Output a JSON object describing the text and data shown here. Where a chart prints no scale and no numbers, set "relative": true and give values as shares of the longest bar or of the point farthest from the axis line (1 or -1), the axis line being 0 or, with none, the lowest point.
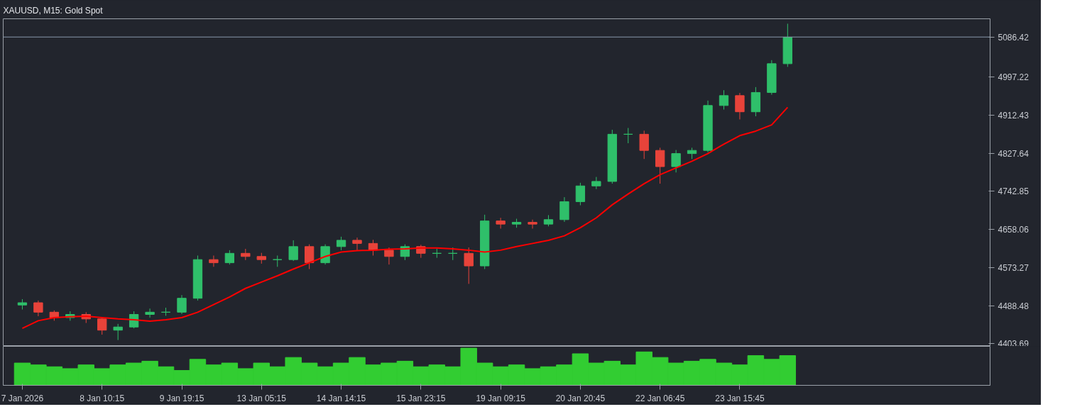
{
  "chart_data": [
    {
      "type": "candlestick",
      "title": "XAUUSD, M15:  Gold Spot",
      "categories": [
        null,
        null,
        null,
        null,
        null,
        null,
        null,
        null,
        null,
        null,
        null,
        null,
        null,
        null,
        null,
        null,
        null,
        null,
        null,
        null,
        null,
        null,
        null,
        null,
        null,
        null,
        null,
        null,
        null,
        null,
        null,
        null,
        null,
        null,
        null,
        null,
        null,
        null,
        null,
        null,
        null,
        null,
        null,
        null,
        null,
        null,
        null,
        null,
        null,
        null,
        null,
        null,
        null,
        null,
        null,
        null,
        null,
        null,
        null,
        null,
        null
      ],
      "ohlc": [
        [
          4490,
          4503,
          4480,
          4495
        ],
        [
          4495,
          4500,
          4465,
          4474
        ],
        [
          4474,
          4478,
          4455,
          4462
        ],
        [
          4462,
          4476,
          4455,
          4469
        ],
        [
          4469,
          4474,
          4450,
          4459
        ],
        [
          4459,
          4462,
          4424,
          4434
        ],
        [
          4434,
          4448,
          4412,
          4441
        ],
        [
          4441,
          4476,
          4438,
          4469
        ],
        [
          4469,
          4482,
          4462,
          4474
        ],
        [
          4474,
          4484,
          4466,
          4474
        ],
        [
          4474,
          4512,
          4470,
          4505
        ],
        [
          4505,
          4600,
          4500,
          4591
        ],
        [
          4591,
          4600,
          4575,
          4584
        ],
        [
          4584,
          4612,
          4580,
          4605
        ],
        [
          4605,
          4615,
          4590,
          4598
        ],
        [
          4598,
          4606,
          4582,
          4591
        ],
        [
          4591,
          4600,
          4575,
          4591
        ],
        [
          4591,
          4634,
          4588,
          4620
        ],
        [
          4620,
          4625,
          4570,
          4584
        ],
        [
          4584,
          4625,
          4580,
          4620
        ],
        [
          4620,
          4642,
          4612,
          4634
        ],
        [
          4634,
          4640,
          4612,
          4627
        ],
        [
          4627,
          4635,
          4600,
          4612
        ],
        [
          4612,
          4618,
          4580,
          4598
        ],
        [
          4598,
          4625,
          4590,
          4620
        ],
        [
          4620,
          4624,
          4595,
          4605
        ],
        [
          4605,
          4615,
          4595,
          4605
        ],
        [
          4605,
          4618,
          4590,
          4605
        ],
        [
          4605,
          4618,
          4537,
          4577
        ],
        [
          4577,
          4691,
          4570,
          4677
        ],
        [
          4677,
          4684,
          4660,
          4670
        ],
        [
          4670,
          4682,
          4662,
          4674
        ],
        [
          4674,
          4680,
          4660,
          4670
        ],
        [
          4670,
          4690,
          4665,
          4680
        ],
        [
          4680,
          4730,
          4675,
          4720
        ],
        [
          4720,
          4762,
          4712,
          4755
        ],
        [
          4755,
          4775,
          4748,
          4765
        ],
        [
          4765,
          4880,
          4760,
          4870
        ],
        [
          4870,
          4884,
          4850,
          4870
        ],
        [
          4870,
          4878,
          4815,
          4834
        ],
        [
          4834,
          4840,
          4760,
          4798
        ],
        [
          4798,
          4835,
          4785,
          4827
        ],
        [
          4827,
          4840,
          4815,
          4834
        ],
        [
          4834,
          4945,
          4830,
          4934
        ],
        [
          4934,
          4968,
          4925,
          4956
        ],
        [
          4956,
          4962,
          4903,
          4920
        ],
        [
          4920,
          4975,
          4910,
          4963
        ],
        [
          4963,
          5035,
          4958,
          5027
        ],
        [
          5027,
          5116,
          5020,
          5086
        ],
        null,
        null,
        null,
        null,
        null,
        null,
        null,
        null,
        null,
        null,
        null,
        null
      ],
      "colors": [
        "#2fbf6a",
        "#e8433a",
        "#e8433a",
        "#2fbf6a",
        "#e8433a",
        "#e8433a",
        "#2fbf6a",
        "#2fbf6a",
        "#2fbf6a",
        "#2fbf6a",
        "#2fbf6a",
        "#2fbf6a",
        "#e8433a",
        "#2fbf6a",
        "#e8433a",
        "#e8433a",
        "#2fbf6a",
        "#2fbf6a",
        "#e8433a",
        "#2fbf6a",
        "#2fbf6a",
        "#e8433a",
        "#e8433a",
        "#e8433a",
        "#2fbf6a",
        "#e8433a",
        "#2fbf6a",
        "#2fbf6a",
        "#e8433a",
        "#2fbf6a",
        "#e8433a",
        "#2fbf6a",
        "#e8433a",
        "#2fbf6a",
        "#2fbf6a",
        "#2fbf6a",
        "#2fbf6a",
        "#2fbf6a",
        "#2fbf6a",
        "#e8433a",
        "#e8433a",
        "#2fbf6a",
        "#2fbf6a",
        "#2fbf6a",
        "#2fbf6a",
        "#e8433a",
        "#2fbf6a",
        "#2fbf6a",
        "#2fbf6a",
        null,
        null,
        null,
        null,
        null,
        null,
        null,
        null,
        null,
        null,
        null,
        null
      ],
      "series": [
        {
          "type": "line",
          "color": "#ff0000",
          "values": [
            4438,
            4455,
            4462,
            4464,
            4465,
            4462,
            4459,
            4457,
            4454,
            4457,
            4462,
            4474,
            4491,
            4508,
            4527,
            4541,
            4555,
            4570,
            4584,
            4598,
            4608,
            4611,
            4612,
            4614,
            4615,
            4617,
            4617,
            4615,
            4612,
            4608,
            4612,
            4620,
            4627,
            4634,
            4644,
            4662,
            4684,
            4713,
            4737,
            4760,
            4780,
            4795,
            4810,
            4827,
            4848,
            4867,
            4877,
            4891,
            4930,
            null,
            null,
            null,
            null,
            null,
            null,
            null,
            null,
            null,
            null,
            null,
            null
          ]
        }
      ],
      "ylim": [
        4398,
        5127
      ],
      "yticks": [
        4403.69,
        4488.48,
        4573.27,
        4658.06,
        4742.85,
        4827.64,
        4912.43,
        4997.22
      ],
      "ref_lines": [
        {
          "axis": "y",
          "value": 5086.42,
          "label": "5086.42",
          "color": "#8a99ac"
        }
      ],
      "tick_labels": "y"
    },
    {
      "type": "bar",
      "categories": [
        "7 Jan 2026",
        null,
        null,
        null,
        null,
        "8 Jan 10:15",
        null,
        null,
        null,
        null,
        "9 Jan 19:15",
        null,
        null,
        null,
        null,
        "13 Jan 05:15",
        null,
        null,
        null,
        null,
        "14 Jan 14:15",
        null,
        null,
        null,
        null,
        "15 Jan 23:15",
        null,
        null,
        null,
        null,
        "19 Jan 09:15",
        null,
        null,
        null,
        null,
        "20 Jan 20:45",
        null,
        null,
        null,
        null,
        "22 Jan 06:45",
        null,
        null,
        null,
        null,
        "23 Jan 15:45",
        null,
        null,
        null,
        null,
        null,
        null,
        null,
        null,
        null,
        null,
        null,
        null,
        null,
        null,
        null
      ],
      "values": [
        0.6,
        0.55,
        0.5,
        0.45,
        0.55,
        0.45,
        0.55,
        0.6,
        0.65,
        0.5,
        0.4,
        0.7,
        0.55,
        0.6,
        0.45,
        0.6,
        0.5,
        0.75,
        0.6,
        0.5,
        0.6,
        0.75,
        0.55,
        0.6,
        0.65,
        0.5,
        0.55,
        0.5,
        1.0,
        0.6,
        0.5,
        0.55,
        0.45,
        0.5,
        0.55,
        0.85,
        0.6,
        0.65,
        0.55,
        0.9,
        0.75,
        0.6,
        0.65,
        0.7,
        0.6,
        0.55,
        0.8,
        0.7,
        0.8,
        null,
        null,
        null,
        null,
        null,
        null,
        null,
        null,
        null,
        null,
        null,
        null
      ],
      "color": "#32cd32",
      "relative": true,
      "tick_labels": "x"
    }
  ]
}
